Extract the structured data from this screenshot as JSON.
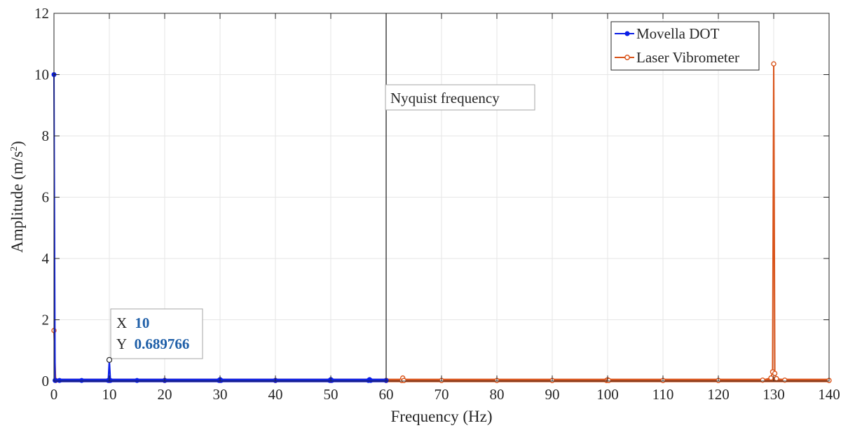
{
  "chart_data": {
    "type": "line",
    "xlabel": "Frequency (Hz)",
    "ylabel_main": "Amplitude (m/s",
    "ylabel_sup": "2",
    "ylabel_tail": ")",
    "xlim": [
      0,
      140
    ],
    "ylim": [
      0,
      12
    ],
    "x_ticks": [
      "0",
      "10",
      "20",
      "30",
      "40",
      "50",
      "60",
      "70",
      "80",
      "90",
      "100",
      "110",
      "120",
      "130",
      "140"
    ],
    "y_ticks": [
      "0",
      "2",
      "4",
      "6",
      "8",
      "10",
      "12"
    ],
    "grid": true,
    "legend_position": "top-right",
    "series": [
      {
        "name": "Movella DOT",
        "color": "#0a1ee6",
        "marker": "filled-circle",
        "x": [
          0,
          0.2,
          1,
          5,
          9.8,
          10,
          10.2,
          15,
          20,
          29.8,
          30,
          30.2,
          40,
          49.8,
          50,
          50.2,
          56.8,
          57,
          57.2,
          60
        ],
        "y": [
          10.0,
          0.02,
          0.02,
          0.02,
          0.02,
          0.689766,
          0.02,
          0.02,
          0.02,
          0.02,
          0.05,
          0.02,
          0.02,
          0.02,
          0.05,
          0.02,
          0.02,
          0.05,
          0.02,
          0.02
        ]
      },
      {
        "name": "Laser Vibrometer",
        "color": "#d95319",
        "marker": "open-circle",
        "x": [
          0,
          0.3,
          10,
          20,
          30,
          40,
          50,
          60,
          62.8,
          63,
          63.2,
          70,
          80,
          90,
          99.8,
          100,
          100.2,
          110,
          120,
          128,
          129.5,
          129.8,
          130,
          130.2,
          130.5,
          132,
          140
        ],
        "y": [
          1.65,
          0.02,
          0.02,
          0.02,
          0.02,
          0.02,
          0.02,
          0.02,
          0.02,
          0.1,
          0.02,
          0.02,
          0.02,
          0.02,
          0.02,
          0.04,
          0.02,
          0.02,
          0.02,
          0.03,
          0.1,
          0.3,
          10.35,
          0.25,
          0.08,
          0.03,
          0.02
        ]
      }
    ],
    "vertical_line": {
      "x": 60,
      "color": "#262626"
    },
    "annotation": {
      "text": "Nyquist frequency"
    },
    "datatip": {
      "x_label": "X",
      "x_value": "10",
      "y_label": "Y",
      "y_value": "0.689766",
      "x": 10,
      "y": 0.689766
    }
  }
}
